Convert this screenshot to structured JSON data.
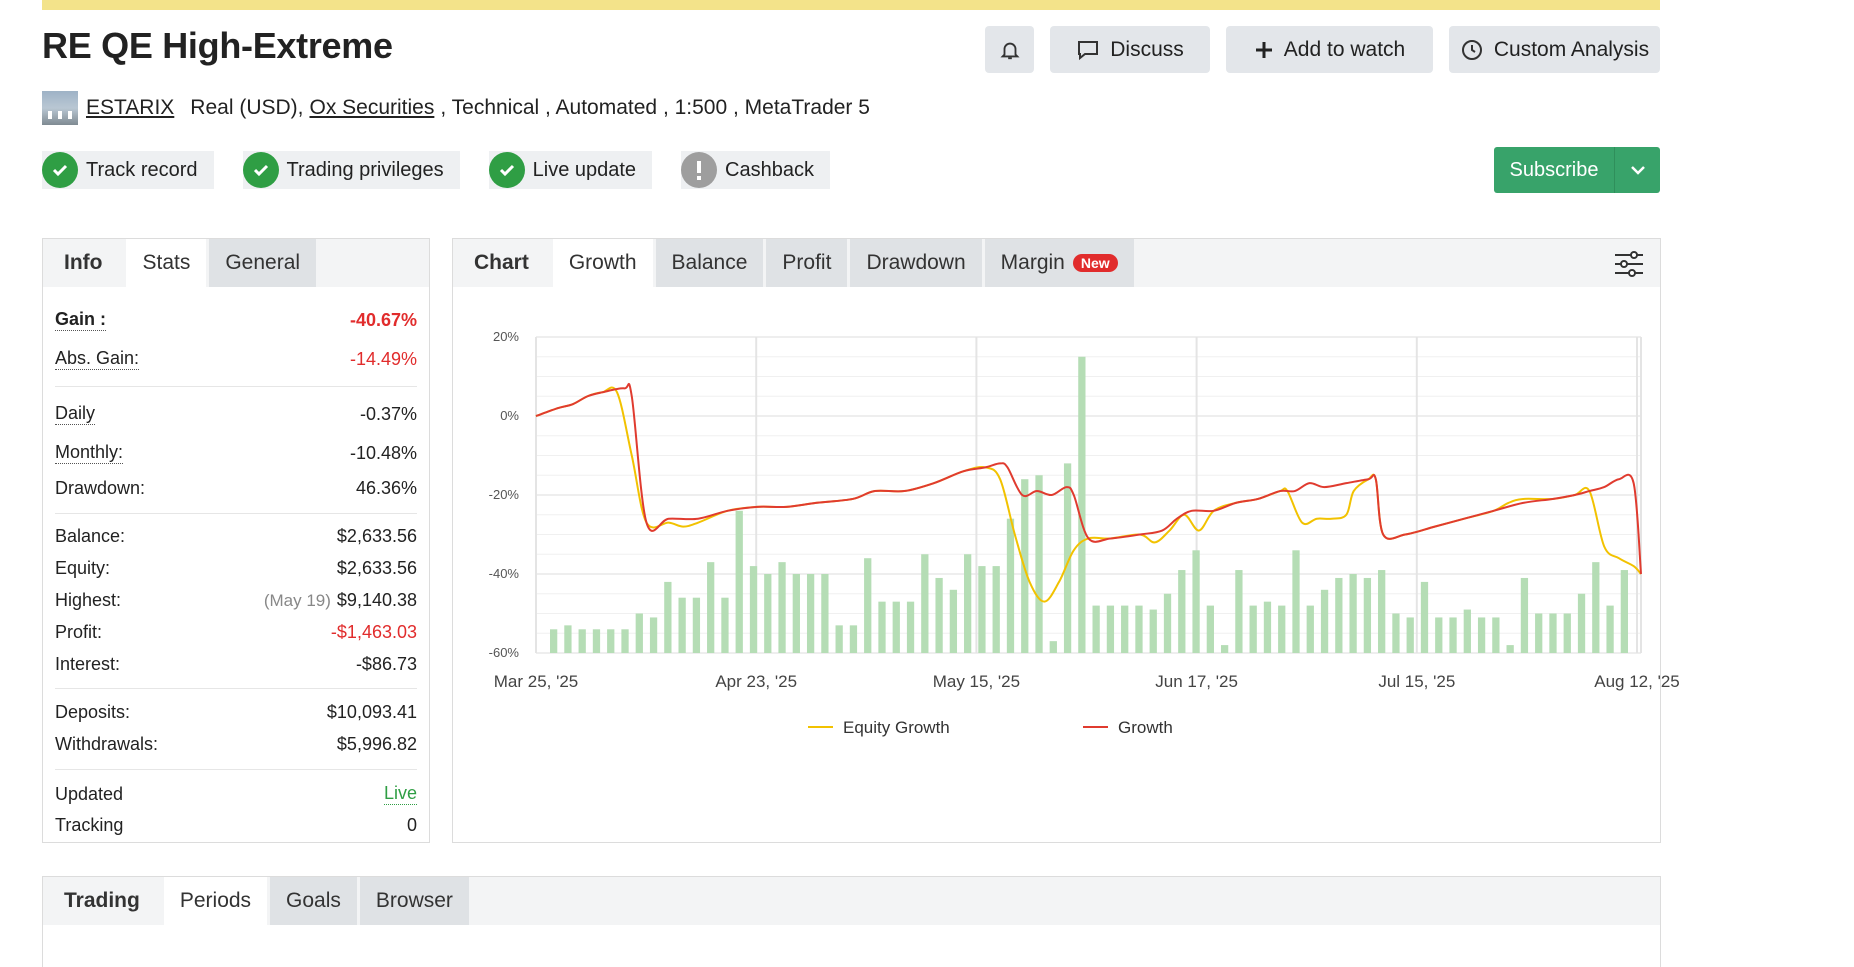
{
  "title": "RE QE High-Extreme",
  "header_buttons": {
    "bell": "",
    "discuss": "Discuss",
    "watch": "Add to watch",
    "analysis": "Custom Analysis"
  },
  "meta": {
    "user": "ESTARIX",
    "account": "Real (USD),",
    "broker": "Ox Securities",
    "rest": ", Technical , Automated , 1:500 , MetaTrader 5"
  },
  "badges": [
    {
      "label": "Track record",
      "status": "ok"
    },
    {
      "label": "Trading privileges",
      "status": "ok"
    },
    {
      "label": "Live update",
      "status": "ok"
    },
    {
      "label": "Cashback",
      "status": "warn"
    }
  ],
  "subscribe": "Subscribe",
  "stats_tabs": [
    "Info",
    "Stats",
    "General"
  ],
  "stats": {
    "gain": {
      "k": "Gain :",
      "v": "-40.67%"
    },
    "abs_gain": {
      "k": "Abs. Gain:",
      "v": "-14.49%"
    },
    "daily": {
      "k": "Daily",
      "v": "-0.37%"
    },
    "monthly": {
      "k": "Monthly:",
      "v": "-10.48%"
    },
    "drawdown": {
      "k": "Drawdown:",
      "v": "46.36%"
    },
    "balance": {
      "k": "Balance:",
      "v": "$2,633.56"
    },
    "equity": {
      "k": "Equity:",
      "v": "$2,633.56"
    },
    "highest": {
      "k": "Highest:",
      "date": "(May 19)",
      "v": "$9,140.38"
    },
    "profit": {
      "k": "Profit:",
      "v": "-$1,463.03"
    },
    "interest": {
      "k": "Interest:",
      "v": "-$86.73"
    },
    "deposits": {
      "k": "Deposits:",
      "v": "$10,093.41"
    },
    "withdrawals": {
      "k": "Withdrawals:",
      "v": "$5,996.82"
    },
    "updated": {
      "k": "Updated",
      "v": "Live"
    },
    "tracking": {
      "k": "Tracking",
      "v": "0"
    }
  },
  "chart_tabs": {
    "head": "Chart",
    "items": [
      "Growth",
      "Balance",
      "Profit",
      "Drawdown",
      "Margin"
    ],
    "new_badge": "New"
  },
  "bottom_tabs": [
    "Trading",
    "Periods",
    "Goals",
    "Browser"
  ],
  "colors": {
    "equity": "#f2c200",
    "growth": "#e03b2f",
    "bars": "#b5ddb5",
    "subscribe": "#38a36a",
    "ok": "#2f9e44",
    "warn": "#9e9e9e",
    "negative": "#e12c2c"
  },
  "chart_data": {
    "type": "line",
    "ylim": [
      -60,
      20
    ],
    "yticks": [
      "20%",
      "0%",
      "-20%",
      "-40%",
      "-60%"
    ],
    "xlabels": [
      "Mar 25, '25",
      "Apr 23, '25",
      "May 15, '25",
      "Jun 17, '25",
      "Jul 15, '25",
      "Aug 12, '25"
    ],
    "legend": [
      "Equity Growth",
      "Growth"
    ],
    "series": [
      {
        "name": "Growth",
        "points": [
          [
            0,
            0
          ],
          [
            3,
            2
          ],
          [
            5,
            3
          ],
          [
            7,
            5
          ],
          [
            9,
            6
          ],
          [
            12,
            7
          ],
          [
            13,
            5
          ],
          [
            15,
            -27
          ],
          [
            18,
            -26
          ],
          [
            22,
            -26
          ],
          [
            26,
            -24
          ],
          [
            30,
            -23
          ],
          [
            34,
            -23
          ],
          [
            38,
            -22
          ],
          [
            43,
            -21
          ],
          [
            46,
            -19
          ],
          [
            50,
            -19
          ],
          [
            54,
            -17
          ],
          [
            58,
            -14
          ],
          [
            61,
            -13
          ],
          [
            63,
            -12
          ],
          [
            64,
            -13
          ],
          [
            66,
            -20
          ],
          [
            68,
            -19
          ],
          [
            70,
            -20
          ],
          [
            72,
            -18
          ],
          [
            73,
            -20
          ],
          [
            75,
            -31
          ],
          [
            78,
            -31
          ],
          [
            82,
            -30
          ],
          [
            85,
            -29
          ],
          [
            87,
            -26
          ],
          [
            89,
            -24
          ],
          [
            92,
            -24
          ],
          [
            95,
            -22
          ],
          [
            98,
            -21
          ],
          [
            101,
            -19
          ],
          [
            103,
            -19
          ],
          [
            105,
            -17
          ],
          [
            107,
            -18
          ],
          [
            110,
            -17
          ],
          [
            113,
            -16
          ],
          [
            114,
            -16
          ],
          [
            115,
            -30
          ],
          [
            118,
            -30
          ],
          [
            122,
            -28
          ],
          [
            126,
            -26
          ],
          [
            130,
            -24
          ],
          [
            134,
            -22
          ],
          [
            138,
            -21
          ],
          [
            141,
            -20
          ],
          [
            143,
            -19
          ],
          [
            145,
            -18
          ],
          [
            147,
            -16
          ],
          [
            149,
            -17
          ],
          [
            150,
            -40
          ]
        ]
      },
      {
        "name": "Equity Growth",
        "points": [
          [
            0,
            0
          ],
          [
            3,
            2
          ],
          [
            5,
            3
          ],
          [
            7,
            5
          ],
          [
            9,
            6
          ],
          [
            11,
            6
          ],
          [
            13,
            -10
          ],
          [
            15,
            -27
          ],
          [
            18,
            -27
          ],
          [
            20,
            -28
          ],
          [
            22,
            -27
          ],
          [
            26,
            -24
          ],
          [
            30,
            -23
          ],
          [
            34,
            -23
          ],
          [
            38,
            -22
          ],
          [
            43,
            -21
          ],
          [
            46,
            -19
          ],
          [
            50,
            -19
          ],
          [
            54,
            -17
          ],
          [
            58,
            -14
          ],
          [
            61,
            -13
          ],
          [
            63,
            -16
          ],
          [
            65,
            -30
          ],
          [
            67,
            -42
          ],
          [
            69,
            -47
          ],
          [
            71,
            -42
          ],
          [
            73,
            -34
          ],
          [
            75,
            -31
          ],
          [
            78,
            -31
          ],
          [
            82,
            -30
          ],
          [
            84,
            -32
          ],
          [
            86,
            -29
          ],
          [
            88,
            -25
          ],
          [
            90,
            -29
          ],
          [
            92,
            -24
          ],
          [
            95,
            -22
          ],
          [
            98,
            -21
          ],
          [
            101,
            -19
          ],
          [
            102,
            -19
          ],
          [
            104,
            -27
          ],
          [
            106,
            -26
          ],
          [
            108,
            -26
          ],
          [
            110,
            -25
          ],
          [
            111,
            -19
          ],
          [
            113,
            -16
          ],
          [
            114,
            -16
          ],
          [
            115,
            -30
          ],
          [
            118,
            -30
          ],
          [
            122,
            -28
          ],
          [
            126,
            -26
          ],
          [
            130,
            -24
          ],
          [
            132,
            -22
          ],
          [
            134,
            -21
          ],
          [
            138,
            -21
          ],
          [
            141,
            -20
          ],
          [
            143,
            -19
          ],
          [
            145,
            -33
          ],
          [
            147,
            -36
          ],
          [
            149,
            -38
          ],
          [
            150,
            -40
          ]
        ]
      }
    ],
    "bars": [
      -54,
      -53,
      -54,
      -54,
      -54,
      -54,
      -50,
      -51,
      -42,
      -46,
      -46,
      -37,
      -46,
      -24,
      -38,
      -40,
      -37,
      -40,
      -40,
      -40,
      -53,
      -53,
      -36,
      -47,
      -47,
      -47,
      -35,
      -41,
      -44,
      -35,
      -38,
      -38,
      -26,
      -16,
      -15,
      -57,
      -12,
      15,
      -48,
      -48,
      -48,
      -48,
      -49,
      -45,
      -39,
      -34,
      -48,
      -58,
      -39,
      -48,
      -47,
      -48,
      -34,
      -48,
      -44,
      -41,
      -40,
      -41,
      -39,
      -50,
      -51,
      -42,
      -51,
      -51,
      -49,
      -51,
      -51,
      -58,
      -41,
      -50,
      -50,
      -50,
      -45,
      -37,
      -48,
      -39
    ]
  }
}
